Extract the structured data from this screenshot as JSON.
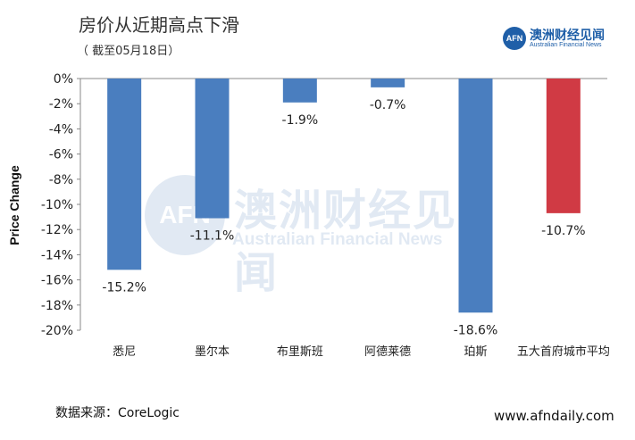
{
  "title": "房价从近期高点下滑",
  "subtitle": "（ 截至05月18日）",
  "source": "数据来源：CoreLogic",
  "website": "www.afndaily.com",
  "logo": {
    "badge": "AFN",
    "name_cn": "澳洲财经见闻",
    "name_en": "Australian Financial News"
  },
  "watermark": {
    "badge": "AFN",
    "name_cn": "澳洲财经见闻",
    "name_en": "Australian Financial News"
  },
  "chart_data": {
    "type": "bar",
    "categories": [
      "悉尼",
      "墨尔本",
      "布里斯班",
      "阿德莱德",
      "珀斯",
      "五大首府城市平均"
    ],
    "values": [
      -15.2,
      -11.1,
      -1.9,
      -0.7,
      -18.6,
      -10.7
    ],
    "data_labels": [
      "-15.2%",
      "-11.1%",
      "-1.9%",
      "-0.7%",
      "-18.6%",
      "-10.7%"
    ],
    "ylabel": "Price Change",
    "ylim": [
      -20,
      0
    ],
    "yticks": [
      0,
      -2,
      -4,
      -6,
      -8,
      -10,
      -12,
      -14,
      -16,
      -18,
      -20
    ],
    "ytick_labels": [
      "0%",
      "-2%",
      "-4%",
      "-6%",
      "-8%",
      "-10%",
      "-12%",
      "-14%",
      "-16%",
      "-18%",
      "-20%"
    ],
    "bar_colors": [
      "#4a7ebf",
      "#4a7ebf",
      "#4a7ebf",
      "#4a7ebf",
      "#4a7ebf",
      "#d03a44"
    ],
    "grid": false,
    "legend": "none"
  }
}
